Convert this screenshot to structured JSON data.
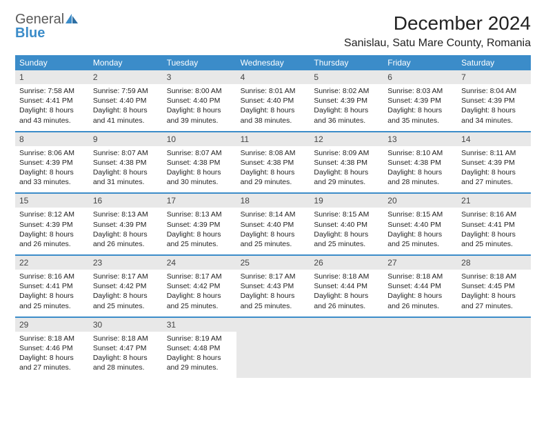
{
  "brand": {
    "part1": "General",
    "part2": "Blue"
  },
  "title": "December 2024",
  "location": "Sanislau, Satu Mare County, Romania",
  "colors": {
    "header_bg": "#3b8cc9",
    "header_text": "#ffffff",
    "daynum_bg": "#e8e8e8",
    "border": "#3b8cc9",
    "text": "#222222"
  },
  "dayHeaders": [
    "Sunday",
    "Monday",
    "Tuesday",
    "Wednesday",
    "Thursday",
    "Friday",
    "Saturday"
  ],
  "weeks": [
    [
      {
        "n": "1",
        "sr": "Sunrise: 7:58 AM",
        "ss": "Sunset: 4:41 PM",
        "dl": "Daylight: 8 hours and 43 minutes."
      },
      {
        "n": "2",
        "sr": "Sunrise: 7:59 AM",
        "ss": "Sunset: 4:40 PM",
        "dl": "Daylight: 8 hours and 41 minutes."
      },
      {
        "n": "3",
        "sr": "Sunrise: 8:00 AM",
        "ss": "Sunset: 4:40 PM",
        "dl": "Daylight: 8 hours and 39 minutes."
      },
      {
        "n": "4",
        "sr": "Sunrise: 8:01 AM",
        "ss": "Sunset: 4:40 PM",
        "dl": "Daylight: 8 hours and 38 minutes."
      },
      {
        "n": "5",
        "sr": "Sunrise: 8:02 AM",
        "ss": "Sunset: 4:39 PM",
        "dl": "Daylight: 8 hours and 36 minutes."
      },
      {
        "n": "6",
        "sr": "Sunrise: 8:03 AM",
        "ss": "Sunset: 4:39 PM",
        "dl": "Daylight: 8 hours and 35 minutes."
      },
      {
        "n": "7",
        "sr": "Sunrise: 8:04 AM",
        "ss": "Sunset: 4:39 PM",
        "dl": "Daylight: 8 hours and 34 minutes."
      }
    ],
    [
      {
        "n": "8",
        "sr": "Sunrise: 8:06 AM",
        "ss": "Sunset: 4:39 PM",
        "dl": "Daylight: 8 hours and 33 minutes."
      },
      {
        "n": "9",
        "sr": "Sunrise: 8:07 AM",
        "ss": "Sunset: 4:38 PM",
        "dl": "Daylight: 8 hours and 31 minutes."
      },
      {
        "n": "10",
        "sr": "Sunrise: 8:07 AM",
        "ss": "Sunset: 4:38 PM",
        "dl": "Daylight: 8 hours and 30 minutes."
      },
      {
        "n": "11",
        "sr": "Sunrise: 8:08 AM",
        "ss": "Sunset: 4:38 PM",
        "dl": "Daylight: 8 hours and 29 minutes."
      },
      {
        "n": "12",
        "sr": "Sunrise: 8:09 AM",
        "ss": "Sunset: 4:38 PM",
        "dl": "Daylight: 8 hours and 29 minutes."
      },
      {
        "n": "13",
        "sr": "Sunrise: 8:10 AM",
        "ss": "Sunset: 4:38 PM",
        "dl": "Daylight: 8 hours and 28 minutes."
      },
      {
        "n": "14",
        "sr": "Sunrise: 8:11 AM",
        "ss": "Sunset: 4:39 PM",
        "dl": "Daylight: 8 hours and 27 minutes."
      }
    ],
    [
      {
        "n": "15",
        "sr": "Sunrise: 8:12 AM",
        "ss": "Sunset: 4:39 PM",
        "dl": "Daylight: 8 hours and 26 minutes."
      },
      {
        "n": "16",
        "sr": "Sunrise: 8:13 AM",
        "ss": "Sunset: 4:39 PM",
        "dl": "Daylight: 8 hours and 26 minutes."
      },
      {
        "n": "17",
        "sr": "Sunrise: 8:13 AM",
        "ss": "Sunset: 4:39 PM",
        "dl": "Daylight: 8 hours and 25 minutes."
      },
      {
        "n": "18",
        "sr": "Sunrise: 8:14 AM",
        "ss": "Sunset: 4:40 PM",
        "dl": "Daylight: 8 hours and 25 minutes."
      },
      {
        "n": "19",
        "sr": "Sunrise: 8:15 AM",
        "ss": "Sunset: 4:40 PM",
        "dl": "Daylight: 8 hours and 25 minutes."
      },
      {
        "n": "20",
        "sr": "Sunrise: 8:15 AM",
        "ss": "Sunset: 4:40 PM",
        "dl": "Daylight: 8 hours and 25 minutes."
      },
      {
        "n": "21",
        "sr": "Sunrise: 8:16 AM",
        "ss": "Sunset: 4:41 PM",
        "dl": "Daylight: 8 hours and 25 minutes."
      }
    ],
    [
      {
        "n": "22",
        "sr": "Sunrise: 8:16 AM",
        "ss": "Sunset: 4:41 PM",
        "dl": "Daylight: 8 hours and 25 minutes."
      },
      {
        "n": "23",
        "sr": "Sunrise: 8:17 AM",
        "ss": "Sunset: 4:42 PM",
        "dl": "Daylight: 8 hours and 25 minutes."
      },
      {
        "n": "24",
        "sr": "Sunrise: 8:17 AM",
        "ss": "Sunset: 4:42 PM",
        "dl": "Daylight: 8 hours and 25 minutes."
      },
      {
        "n": "25",
        "sr": "Sunrise: 8:17 AM",
        "ss": "Sunset: 4:43 PM",
        "dl": "Daylight: 8 hours and 25 minutes."
      },
      {
        "n": "26",
        "sr": "Sunrise: 8:18 AM",
        "ss": "Sunset: 4:44 PM",
        "dl": "Daylight: 8 hours and 26 minutes."
      },
      {
        "n": "27",
        "sr": "Sunrise: 8:18 AM",
        "ss": "Sunset: 4:44 PM",
        "dl": "Daylight: 8 hours and 26 minutes."
      },
      {
        "n": "28",
        "sr": "Sunrise: 8:18 AM",
        "ss": "Sunset: 4:45 PM",
        "dl": "Daylight: 8 hours and 27 minutes."
      }
    ],
    [
      {
        "n": "29",
        "sr": "Sunrise: 8:18 AM",
        "ss": "Sunset: 4:46 PM",
        "dl": "Daylight: 8 hours and 27 minutes."
      },
      {
        "n": "30",
        "sr": "Sunrise: 8:18 AM",
        "ss": "Sunset: 4:47 PM",
        "dl": "Daylight: 8 hours and 28 minutes."
      },
      {
        "n": "31",
        "sr": "Sunrise: 8:19 AM",
        "ss": "Sunset: 4:48 PM",
        "dl": "Daylight: 8 hours and 29 minutes."
      },
      null,
      null,
      null,
      null
    ]
  ]
}
